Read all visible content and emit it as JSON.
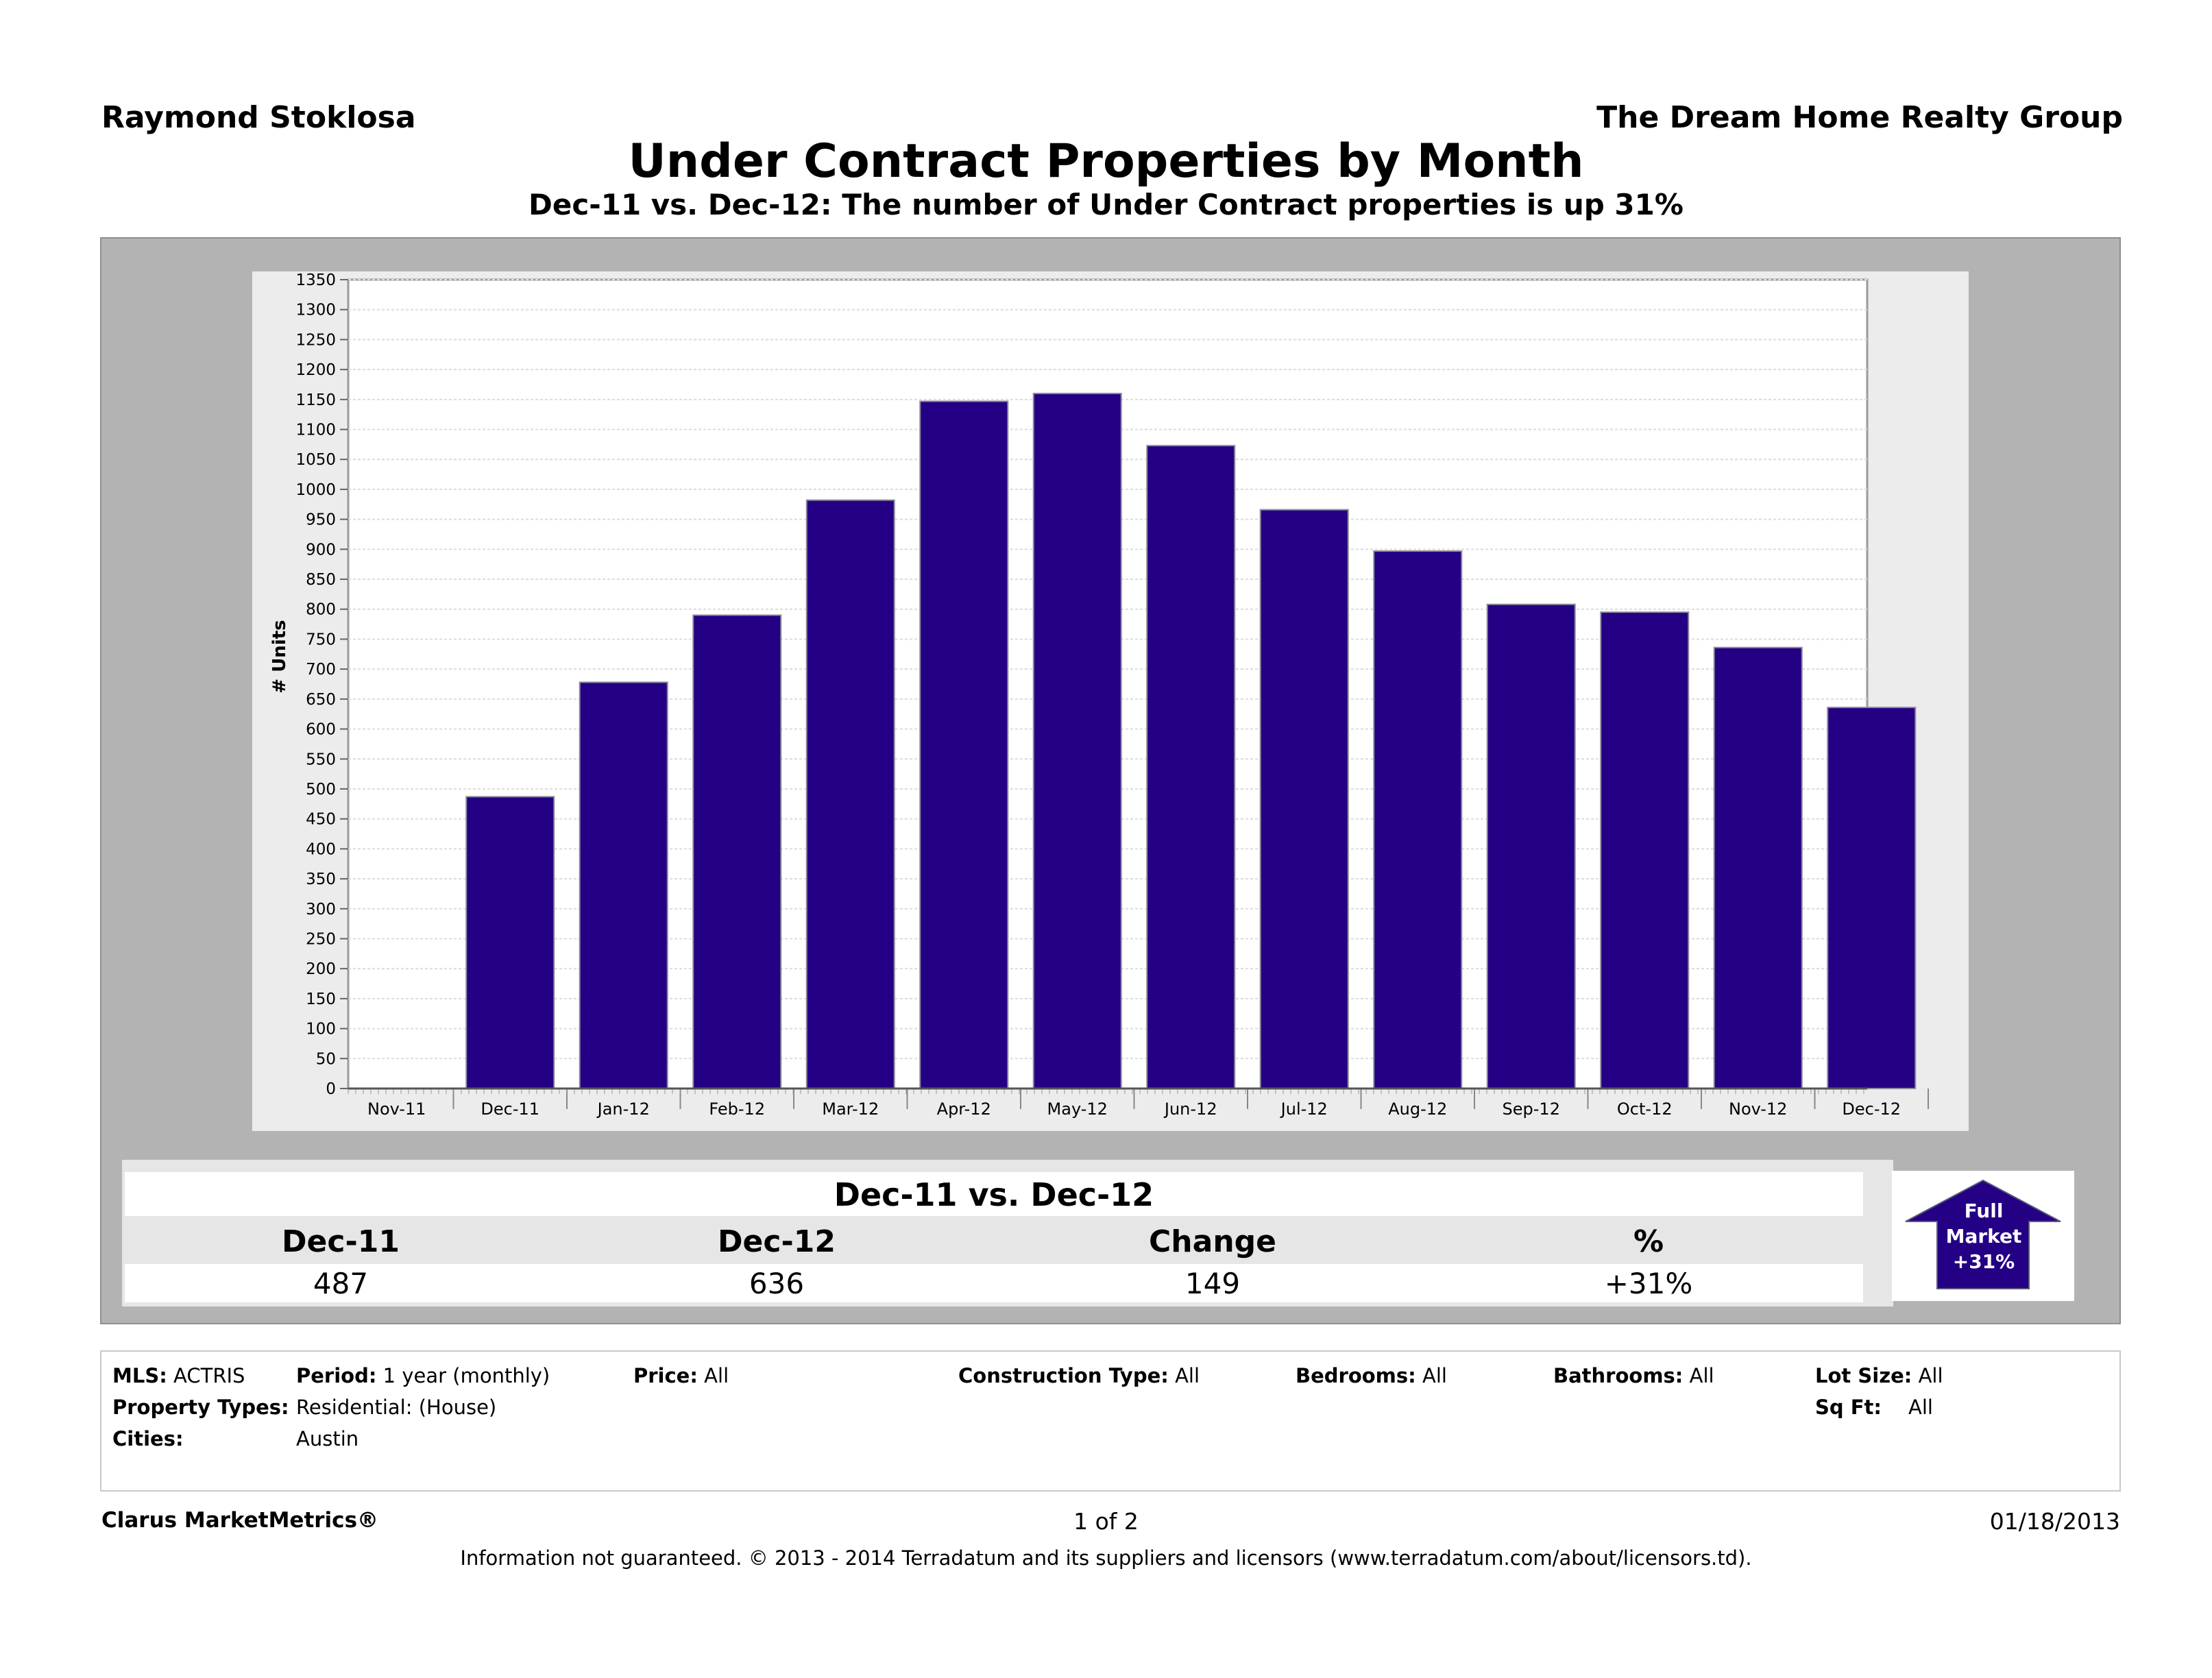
{
  "header": {
    "agent": "Raymond Stoklosa",
    "company": "The Dream Home Realty Group",
    "title": "Under Contract Properties by Month",
    "subtitle": "Dec-11 vs. Dec-12: The number of Under Contract properties is up 31%"
  },
  "chart_data": {
    "type": "bar",
    "categories": [
      "Nov-11",
      "Dec-11",
      "Jan-12",
      "Feb-12",
      "Mar-12",
      "Apr-12",
      "May-12",
      "Jun-12",
      "Jul-12",
      "Aug-12",
      "Sep-12",
      "Oct-12",
      "Nov-12",
      "Dec-12"
    ],
    "values": [
      null,
      487,
      678,
      790,
      982,
      1147,
      1160,
      1073,
      966,
      897,
      808,
      795,
      736,
      636
    ],
    "ylabel": "# Units",
    "ylim": [
      0,
      1350
    ],
    "yticks": [
      0,
      50,
      100,
      150,
      200,
      250,
      300,
      350,
      400,
      450,
      500,
      550,
      600,
      650,
      700,
      750,
      800,
      850,
      900,
      950,
      1000,
      1050,
      1100,
      1150,
      1200,
      1250,
      1300,
      1350
    ],
    "bar_color": "#240084",
    "grid": true
  },
  "summary": {
    "title": "Dec-11 vs. Dec-12",
    "columns": [
      {
        "label": "Dec-11",
        "value": "487"
      },
      {
        "label": "Dec-12",
        "value": "636"
      },
      {
        "label": "Change",
        "value": "149"
      },
      {
        "label": "%",
        "value": "+31%"
      }
    ]
  },
  "badge": {
    "line1": "Full",
    "line2": "Market",
    "line3": "+31%",
    "icon": "up-arrow-icon",
    "color": "#240084"
  },
  "info": {
    "mls_label": "MLS:",
    "mls_value": "ACTRIS",
    "period_label": "Period:",
    "period_value": "1 year (monthly)",
    "price_label": "Price:",
    "price_value": "All",
    "construction_label": "Construction Type:",
    "construction_value": "All",
    "bedrooms_label": "Bedrooms:",
    "bedrooms_value": "All",
    "bathrooms_label": "Bathrooms:",
    "bathrooms_value": "All",
    "lotsize_label": "Lot Size:",
    "lotsize_value": "All",
    "ptypes_label": "Property Types:",
    "ptypes_value": "Residential: (House)",
    "sqft_label": "Sq Ft:",
    "sqft_value": "All",
    "cities_label": "Cities:",
    "cities_value": "Austin"
  },
  "footer": {
    "brand": "Clarus MarketMetrics®",
    "page": "1 of 2",
    "date": "01/18/2013",
    "note": "Information not guaranteed.  © 2013 - 2014 Terradatum and its suppliers and licensors (www.terradatum.com/about/licensors.td)."
  }
}
